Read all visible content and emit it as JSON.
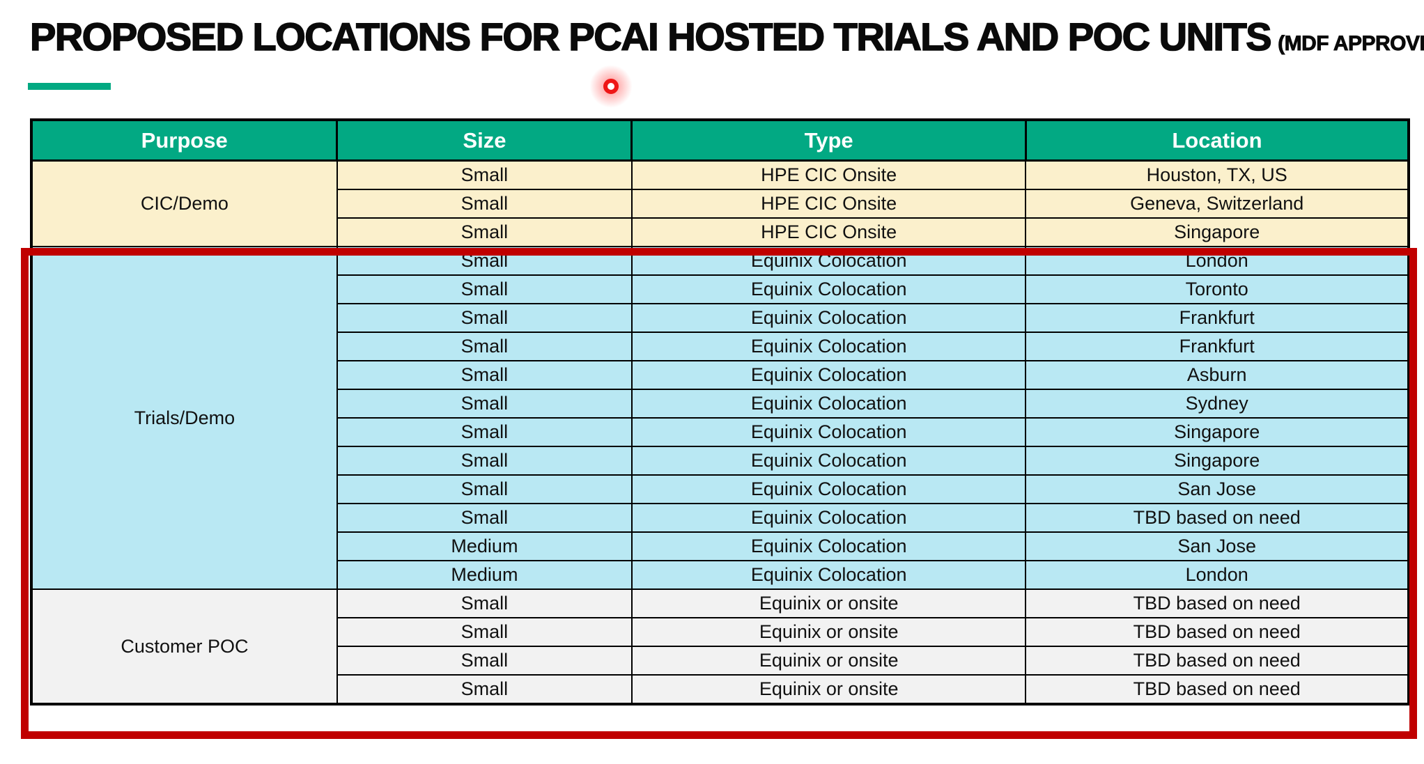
{
  "title": {
    "main": "PROPOSED LOCATIONS FOR PCAI HOSTED TRIALS AND POC UNITS",
    "suffix": "(MDF APPROVED)"
  },
  "accent": {
    "underline_color": "#01A982",
    "laser_pointer_color": "#EE1616"
  },
  "table": {
    "header_bg": "#02A983",
    "header_text_color": "#FFFFFF",
    "headers": [
      "Purpose",
      "Size",
      "Type",
      "Location"
    ],
    "sections": [
      {
        "purpose": "CIC/Demo",
        "bg": "#FBF0CC",
        "rows": [
          {
            "size": "Small",
            "type": "HPE CIC Onsite",
            "location": "Houston, TX, US"
          },
          {
            "size": "Small",
            "type": "HPE CIC Onsite",
            "location": "Geneva, Switzerland"
          },
          {
            "size": "Small",
            "type": "HPE CIC Onsite",
            "location": "Singapore"
          }
        ]
      },
      {
        "purpose": "Trials/Demo",
        "bg": "#B9E8F3",
        "rows": [
          {
            "size": "Small",
            "type": "Equinix Colocation",
            "location": "London"
          },
          {
            "size": "Small",
            "type": "Equinix Colocation",
            "location": "Toronto"
          },
          {
            "size": "Small",
            "type": "Equinix Colocation",
            "location": "Frankfurt"
          },
          {
            "size": "Small",
            "type": "Equinix Colocation",
            "location": "Frankfurt"
          },
          {
            "size": "Small",
            "type": "Equinix Colocation",
            "location": "Asburn"
          },
          {
            "size": "Small",
            "type": "Equinix Colocation",
            "location": "Sydney"
          },
          {
            "size": "Small",
            "type": "Equinix Colocation",
            "location": "Singapore"
          },
          {
            "size": "Small",
            "type": "Equinix Colocation",
            "location": "Singapore"
          },
          {
            "size": "Small",
            "type": "Equinix Colocation",
            "location": "San Jose"
          },
          {
            "size": "Small",
            "type": "Equinix Colocation",
            "location": "TBD based on need"
          },
          {
            "size": "Medium",
            "type": "Equinix Colocation",
            "location": "San Jose"
          },
          {
            "size": "Medium",
            "type": "Equinix Colocation",
            "location": "London"
          }
        ]
      },
      {
        "purpose": "Customer POC",
        "bg": "#F2F2F2",
        "rows": [
          {
            "size": "Small",
            "type": "Equinix or onsite",
            "location": "TBD based on need"
          },
          {
            "size": "Small",
            "type": "Equinix or onsite",
            "location": "TBD based on need"
          },
          {
            "size": "Small",
            "type": "Equinix or onsite",
            "location": "TBD based on need"
          },
          {
            "size": "Small",
            "type": "Equinix or onsite",
            "location": "TBD based on need"
          }
        ]
      }
    ],
    "highlight_box": {
      "color": "#C00000",
      "wraps_sections": [
        "Trials/Demo",
        "Customer POC"
      ]
    }
  }
}
